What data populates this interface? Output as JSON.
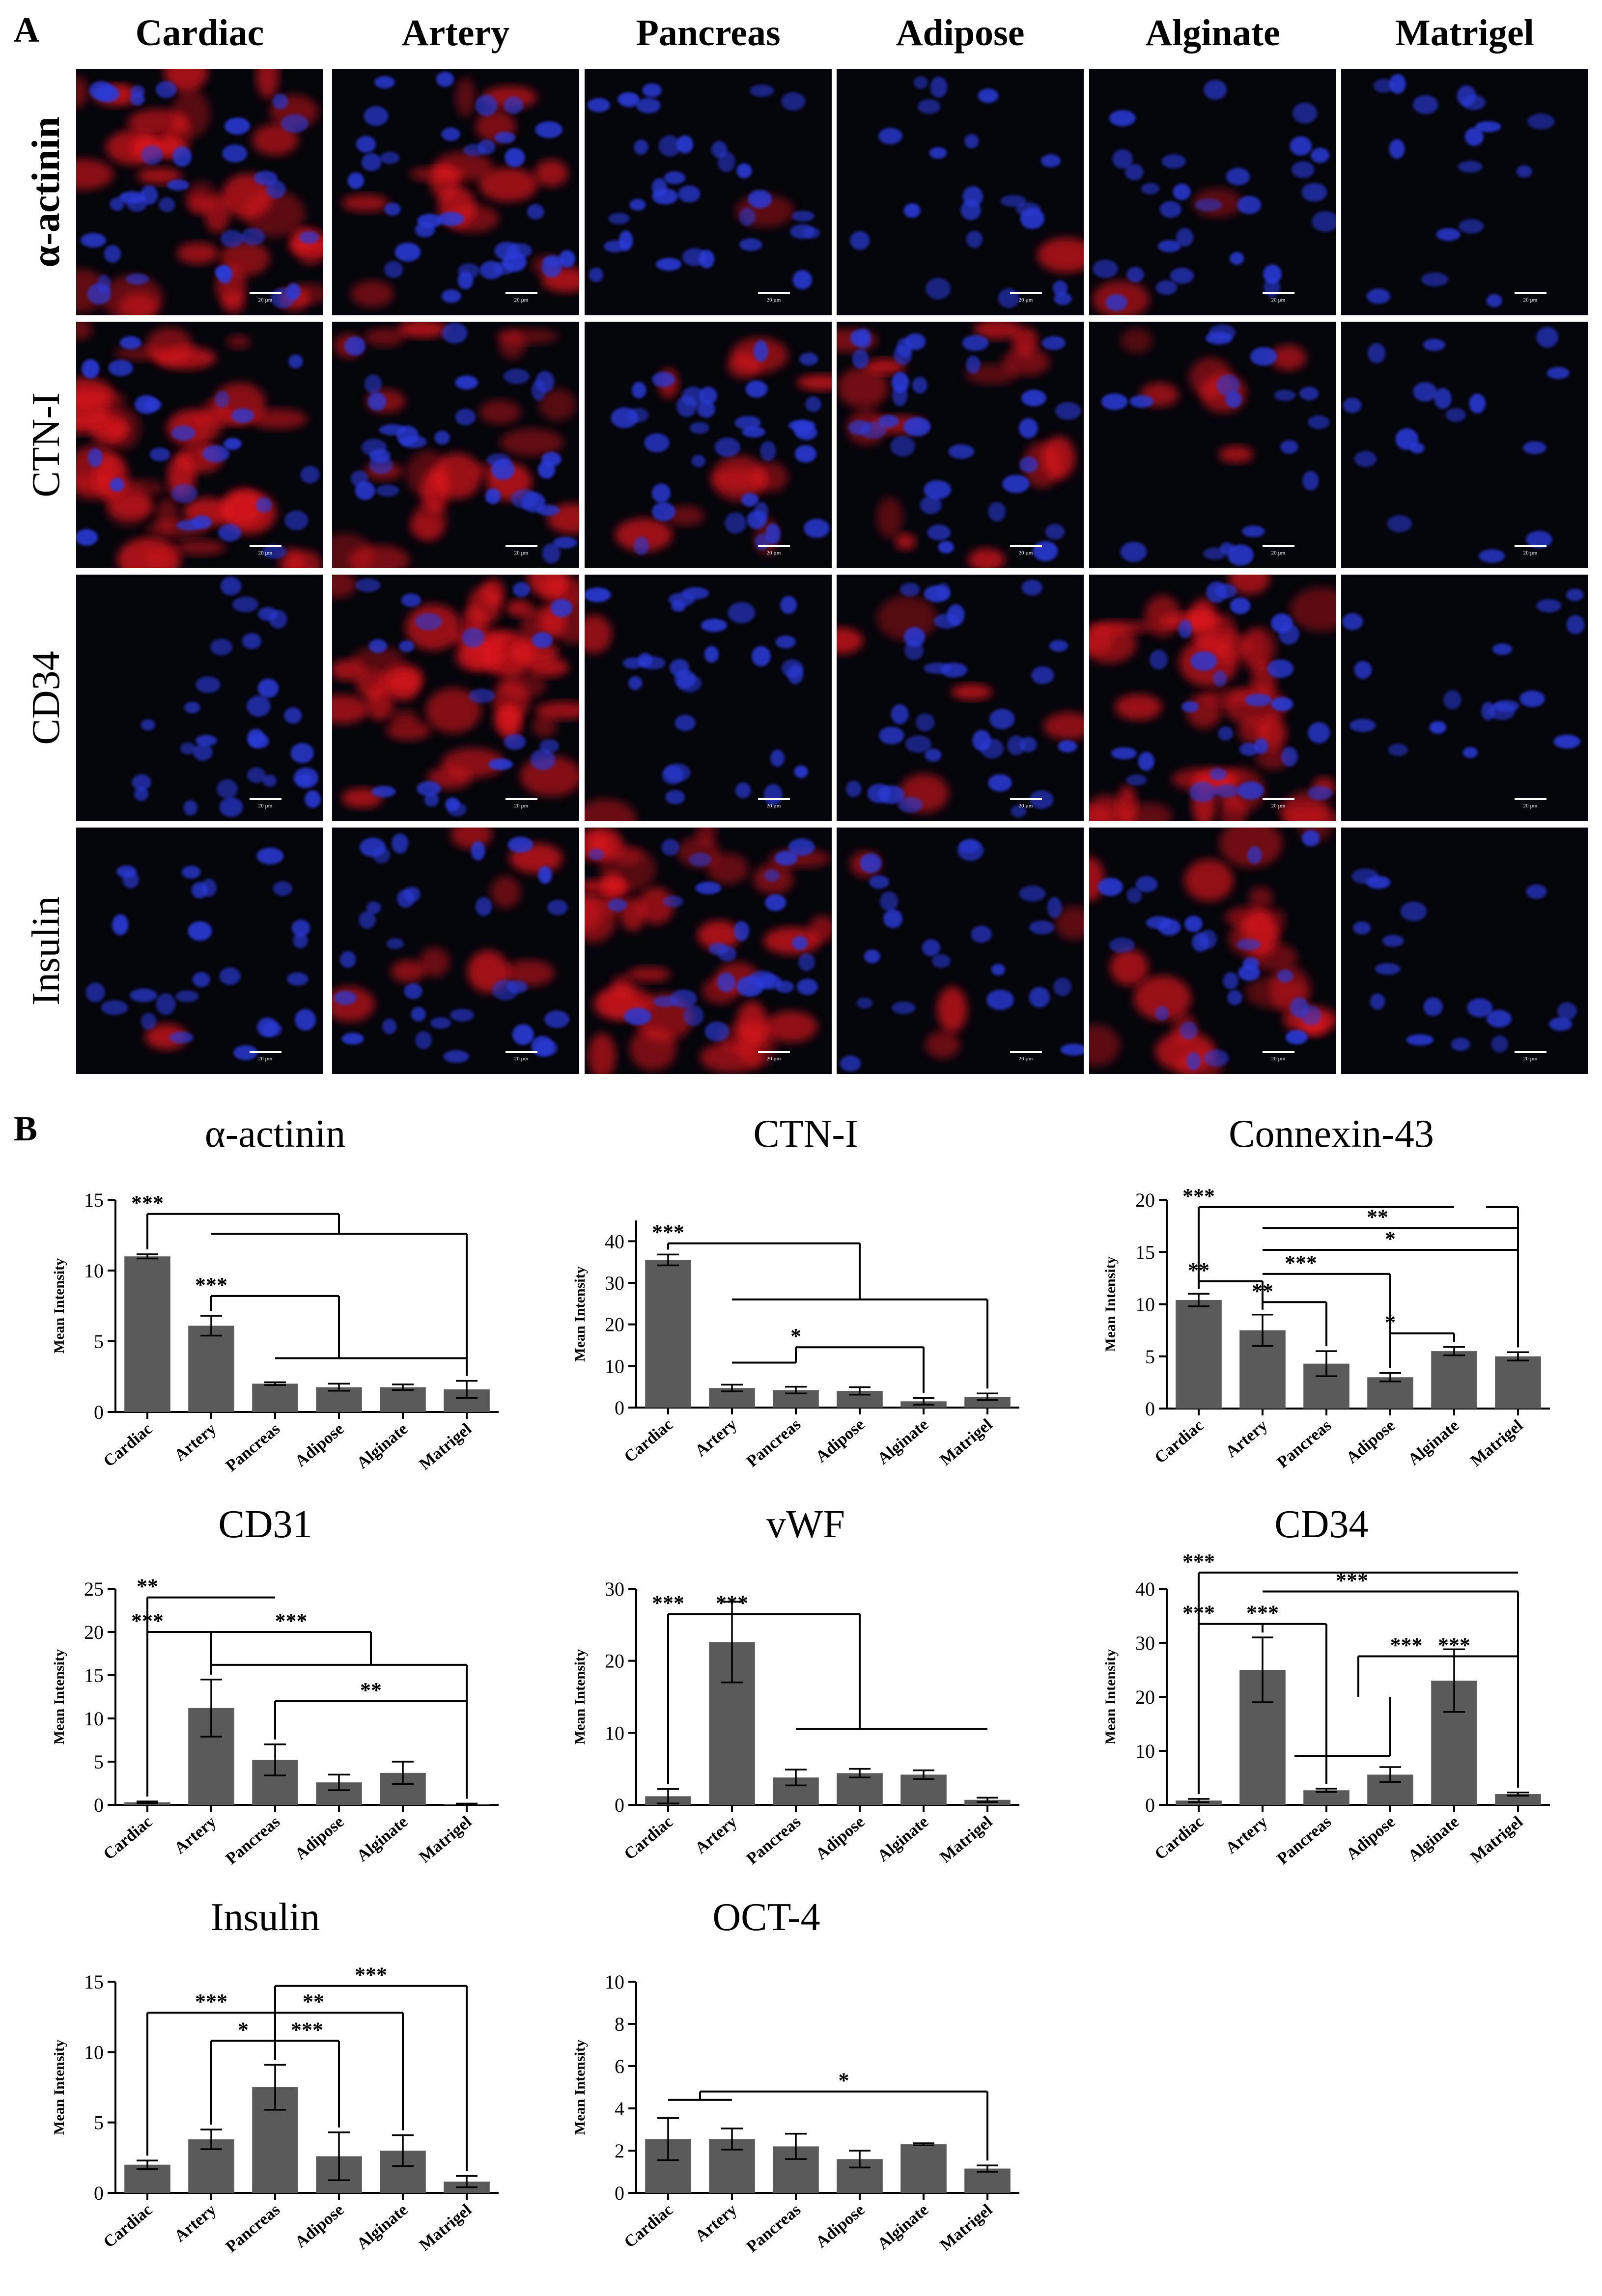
{
  "panel_a": {
    "label": "A",
    "columns": [
      "Cardiac",
      "Artery",
      "Pancreas",
      "Adipose",
      "Alginate",
      "Matrigel"
    ],
    "rows": [
      "α-actinin",
      "CTN-I",
      "CD34",
      "Insulin"
    ],
    "scale_bar_label": "20 µm",
    "colors": {
      "nucleus": "#2b3bd8",
      "marker": "#e0141e",
      "background": "#05050c"
    },
    "marker_signal": [
      [
        0.85,
        0.35,
        0.03,
        0.02,
        0.06,
        0.0
      ],
      [
        0.95,
        0.5,
        0.25,
        0.35,
        0.15,
        0.0
      ],
      [
        0.0,
        0.95,
        0.04,
        0.12,
        0.9,
        0.0
      ],
      [
        0.02,
        0.2,
        0.85,
        0.1,
        0.5,
        0.0
      ]
    ]
  },
  "panel_b": {
    "label": "B"
  },
  "chart_data": [
    {
      "type": "bar",
      "title": "α-actinin",
      "ylabel": "Mean Intensity",
      "categories": [
        "Cardiac",
        "Artery",
        "Pancreas",
        "Adipose",
        "Alginate",
        "Matrigel"
      ],
      "values": [
        11.0,
        6.1,
        2.0,
        1.75,
        1.75,
        1.6
      ],
      "errors": [
        0.15,
        0.7,
        0.1,
        0.25,
        0.2,
        0.6
      ],
      "ylim": [
        0,
        15
      ],
      "yticks": [
        0,
        5,
        10,
        15
      ],
      "significance": [
        "***",
        "***"
      ]
    },
    {
      "type": "bar",
      "title": "CTN-I",
      "ylabel": "Mean Intensity",
      "categories": [
        "Cardiac",
        "Artery",
        "Pancreas",
        "Adipose",
        "Alginate",
        "Matrigel"
      ],
      "values": [
        35.5,
        4.7,
        4.2,
        4.0,
        1.5,
        2.6
      ],
      "errors": [
        1.3,
        0.8,
        0.8,
        0.9,
        0.8,
        0.8
      ],
      "ylim": [
        0,
        45
      ],
      "yticks": [
        0,
        10,
        20,
        30,
        40
      ],
      "significance": [
        "***",
        "*"
      ]
    },
    {
      "type": "bar",
      "title": "Connexin-43",
      "ylabel": "Mean Intensity",
      "categories": [
        "Cardiac",
        "Artery",
        "Pancreas",
        "Adipose",
        "Alginate",
        "Matrigel"
      ],
      "values": [
        10.4,
        7.5,
        4.3,
        3.0,
        5.5,
        5.0
      ],
      "errors": [
        0.6,
        1.5,
        1.2,
        0.4,
        0.4,
        0.4
      ],
      "ylim": [
        0,
        20
      ],
      "yticks": [
        0,
        5,
        10,
        15,
        20
      ],
      "significance": [
        "***",
        "**",
        "*",
        "**",
        "***",
        "**",
        "*"
      ]
    },
    {
      "type": "bar",
      "title": "CD31",
      "ylabel": "Mean Intensity",
      "categories": [
        "Cardiac",
        "Artery",
        "Pancreas",
        "Adipose",
        "Alginate",
        "Matrigel"
      ],
      "values": [
        0.3,
        11.2,
        5.2,
        2.6,
        3.7,
        0.1
      ],
      "errors": [
        0.1,
        3.3,
        1.8,
        0.9,
        1.3,
        0.05
      ],
      "ylim": [
        0,
        25
      ],
      "yticks": [
        0,
        5,
        10,
        15,
        20,
        25
      ],
      "significance": [
        "**",
        "***",
        "***",
        "**"
      ]
    },
    {
      "type": "bar",
      "title": "vWF",
      "ylabel": "Mean Intensity",
      "categories": [
        "Cardiac",
        "Artery",
        "Pancreas",
        "Adipose",
        "Alginate",
        "Matrigel"
      ],
      "values": [
        1.2,
        22.6,
        3.8,
        4.4,
        4.2,
        0.7
      ],
      "errors": [
        1.0,
        5.6,
        1.1,
        0.6,
        0.6,
        0.3
      ],
      "ylim": [
        0,
        30
      ],
      "yticks": [
        0,
        10,
        20,
        30
      ],
      "significance": [
        "***",
        "***"
      ]
    },
    {
      "type": "bar",
      "title": "CD34",
      "ylabel": "Mean Intensity",
      "categories": [
        "Cardiac",
        "Artery",
        "Pancreas",
        "Adipose",
        "Alginate",
        "Matrigel"
      ],
      "values": [
        0.8,
        25.0,
        2.7,
        5.6,
        23.0,
        2.0
      ],
      "errors": [
        0.3,
        6.0,
        0.3,
        1.4,
        5.8,
        0.3
      ],
      "ylim": [
        0,
        40
      ],
      "yticks": [
        0,
        10,
        20,
        30,
        40
      ],
      "significance": [
        "***",
        "***",
        "***",
        "***",
        "***",
        "***"
      ]
    },
    {
      "type": "bar",
      "title": "Insulin",
      "ylabel": "Mean Intensity",
      "categories": [
        "Cardiac",
        "Artery",
        "Pancreas",
        "Adipose",
        "Alginate",
        "Matrigel"
      ],
      "values": [
        2.0,
        3.8,
        7.5,
        2.6,
        3.0,
        0.8
      ],
      "errors": [
        0.3,
        0.7,
        1.6,
        1.7,
        1.1,
        0.4
      ],
      "ylim": [
        0,
        15
      ],
      "yticks": [
        0,
        5,
        10,
        15
      ],
      "significance": [
        "***",
        "*",
        "***",
        "**",
        "***"
      ]
    },
    {
      "type": "bar",
      "title": "OCT-4",
      "ylabel": "Mean Intensity",
      "categories": [
        "Cardiac",
        "Artery",
        "Pancreas",
        "Adipose",
        "Alginate",
        "Matrigel"
      ],
      "values": [
        2.55,
        2.55,
        2.2,
        1.6,
        2.3,
        1.15
      ],
      "errors": [
        1.0,
        0.5,
        0.6,
        0.4,
        0.05,
        0.15
      ],
      "ylim": [
        0,
        10
      ],
      "yticks": [
        0,
        2,
        4,
        6,
        8,
        10
      ],
      "significance": [
        "*"
      ]
    }
  ]
}
